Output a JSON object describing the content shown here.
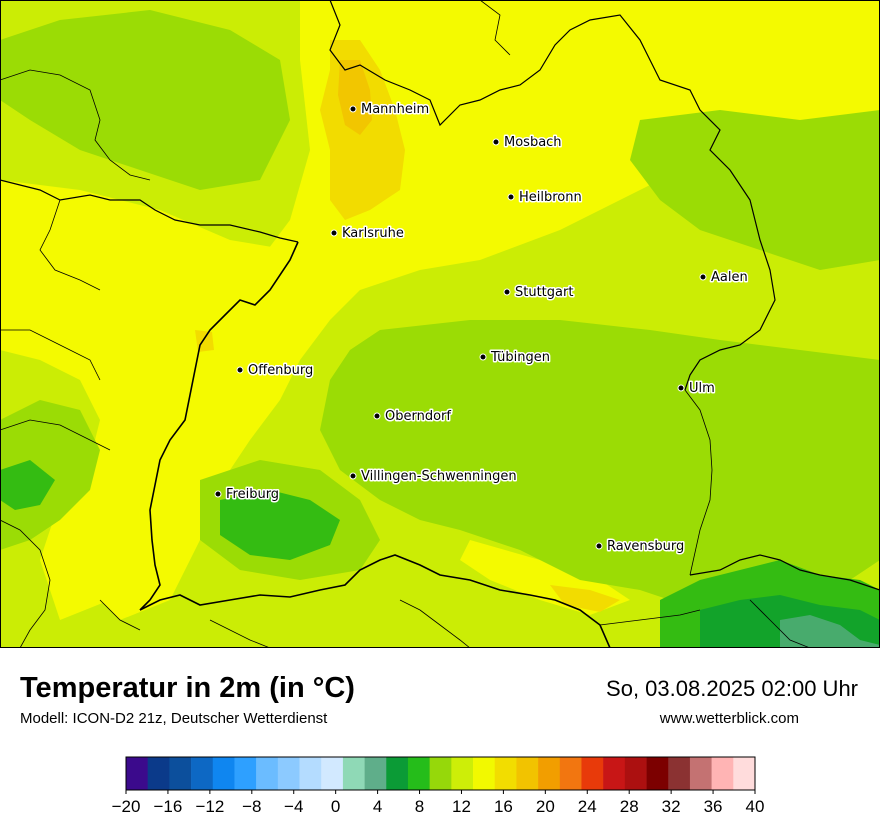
{
  "footer": {
    "title": "Temperatur in 2m (in °C)",
    "model": "Modell: ICON-D2 21z, Deutscher Wetterdienst",
    "datetime": "So, 03.08.2025 02:00 Uhr",
    "website": "www.wetterblick.com"
  },
  "cities": [
    {
      "name": "Mannheim"
    },
    {
      "name": "Mosbach"
    },
    {
      "name": "Heilbronn"
    },
    {
      "name": "Karlsruhe"
    },
    {
      "name": "Aalen"
    },
    {
      "name": "Stuttgart"
    },
    {
      "name": "Tübingen"
    },
    {
      "name": "Offenburg"
    },
    {
      "name": "Ulm"
    },
    {
      "name": "Oberndorf"
    },
    {
      "name": "Villingen-Schwenningen"
    },
    {
      "name": "Freiburg"
    },
    {
      "name": "Ravensburg"
    }
  ],
  "legend": {
    "tick_labels": [
      "−20",
      "−16",
      "−12",
      "−8",
      "−4",
      "0",
      "4",
      "8",
      "12",
      "16",
      "20",
      "24",
      "28",
      "32",
      "36",
      "40"
    ],
    "colors": [
      "#3b0a8c",
      "#0b3a8a",
      "#0c4f9c",
      "#0d68c4",
      "#0f86f0",
      "#2ea0ff",
      "#6bbcff",
      "#8ccaff",
      "#b4dcff",
      "#d2e9ff",
      "#8fd9b6",
      "#5fae8a",
      "#0b9b36",
      "#25bd1a",
      "#96d80a",
      "#cdee08",
      "#f2f900",
      "#f2dd00",
      "#f2c300",
      "#f29e00",
      "#f27610",
      "#e83a0a",
      "#c81616",
      "#ac1010",
      "#7c0000",
      "#8b3232",
      "#c47272",
      "#ffb4b4",
      "#ffdcdc"
    ],
    "map_colors": {
      "deep_green": "#12a32a",
      "green": "#34bc12",
      "lime_green": "#9bdc05",
      "yellow_green": "#cbed05",
      "yellow": "#f4fa00",
      "gold": "#f2dc00",
      "orange": "#f2b800"
    }
  }
}
